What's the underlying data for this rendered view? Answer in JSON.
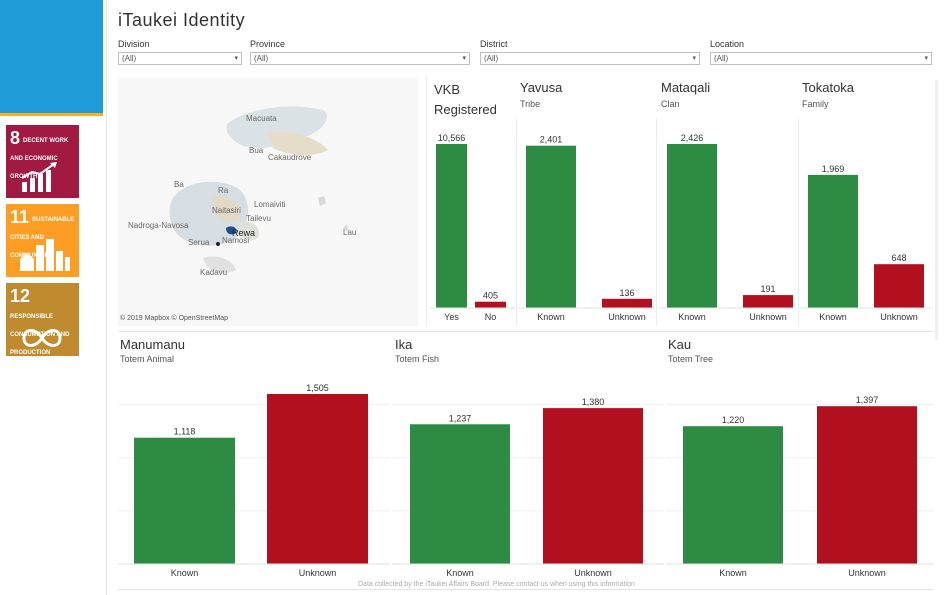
{
  "title": "iTaukei Identity",
  "filters": [
    {
      "label": "Division",
      "value": "(All)"
    },
    {
      "label": "Province",
      "value": "(All)"
    },
    {
      "label": "District",
      "value": "(All)"
    },
    {
      "label": "Location",
      "value": "(All)"
    }
  ],
  "sdg": [
    {
      "number": "8",
      "text": "Decent work and economic growth",
      "color": "#a21942",
      "icon": "growth-chart-icon"
    },
    {
      "number": "11",
      "text": "Sustainable cities and communities",
      "color": "#fd9d24",
      "icon": "city-buildings-icon"
    },
    {
      "number": "12",
      "text": "Responsible consumption and production",
      "color": "#bf8b2e",
      "icon": "infinity-icon"
    }
  ],
  "map": {
    "labels": [
      "Macuata",
      "Bua",
      "Cakaudrove",
      "Ba",
      "Ra",
      "Lomaiviti",
      "Nadroga-Navosa",
      "Naitasiri",
      "Tailevu",
      "Rewa",
      "Serua",
      "Namosi",
      "Lau",
      "Kadavu"
    ],
    "credit": "© 2019 Mapbox © OpenStreetMap"
  },
  "colors": {
    "known": "#2e8b44",
    "unknown": "#b2101f",
    "accent": "#1f9bd7"
  },
  "chart_data": [
    {
      "type": "bar",
      "title": "VKB Registered",
      "subtitle": "",
      "categories": [
        "Yes",
        "No"
      ],
      "values": [
        10566,
        405
      ],
      "value_labels": [
        "10,566",
        "405"
      ]
    },
    {
      "type": "bar",
      "title": "Yavusa",
      "subtitle": "Tribe",
      "categories": [
        "Known",
        "Unknown"
      ],
      "values": [
        2401,
        136
      ],
      "value_labels": [
        "2,401",
        "136"
      ]
    },
    {
      "type": "bar",
      "title": "Mataqali",
      "subtitle": "Clan",
      "categories": [
        "Known",
        "Unknown"
      ],
      "values": [
        2426,
        191
      ],
      "value_labels": [
        "2,426",
        "191"
      ]
    },
    {
      "type": "bar",
      "title": "Tokatoka",
      "subtitle": "Family",
      "categories": [
        "Known",
        "Unknown"
      ],
      "values": [
        1969,
        648
      ],
      "value_labels": [
        "1,969",
        "648"
      ]
    },
    {
      "type": "bar",
      "title": "Manumanu",
      "subtitle": "Totem Animal",
      "categories": [
        "Known",
        "Unknown"
      ],
      "values": [
        1118,
        1505
      ],
      "value_labels": [
        "1,118",
        "1,505"
      ]
    },
    {
      "type": "bar",
      "title": "Ika",
      "subtitle": "Totem Fish",
      "categories": [
        "Known",
        "Unknown"
      ],
      "values": [
        1237,
        1380
      ],
      "value_labels": [
        "1,237",
        "1,380"
      ]
    },
    {
      "type": "bar",
      "title": "Kau",
      "subtitle": "Totem Tree",
      "categories": [
        "Known",
        "Unknown"
      ],
      "values": [
        1220,
        1397
      ],
      "value_labels": [
        "1,220",
        "1,397"
      ]
    }
  ],
  "footer": "Data collected by the iTaukei Affairs Board. Please contact us when using this information"
}
